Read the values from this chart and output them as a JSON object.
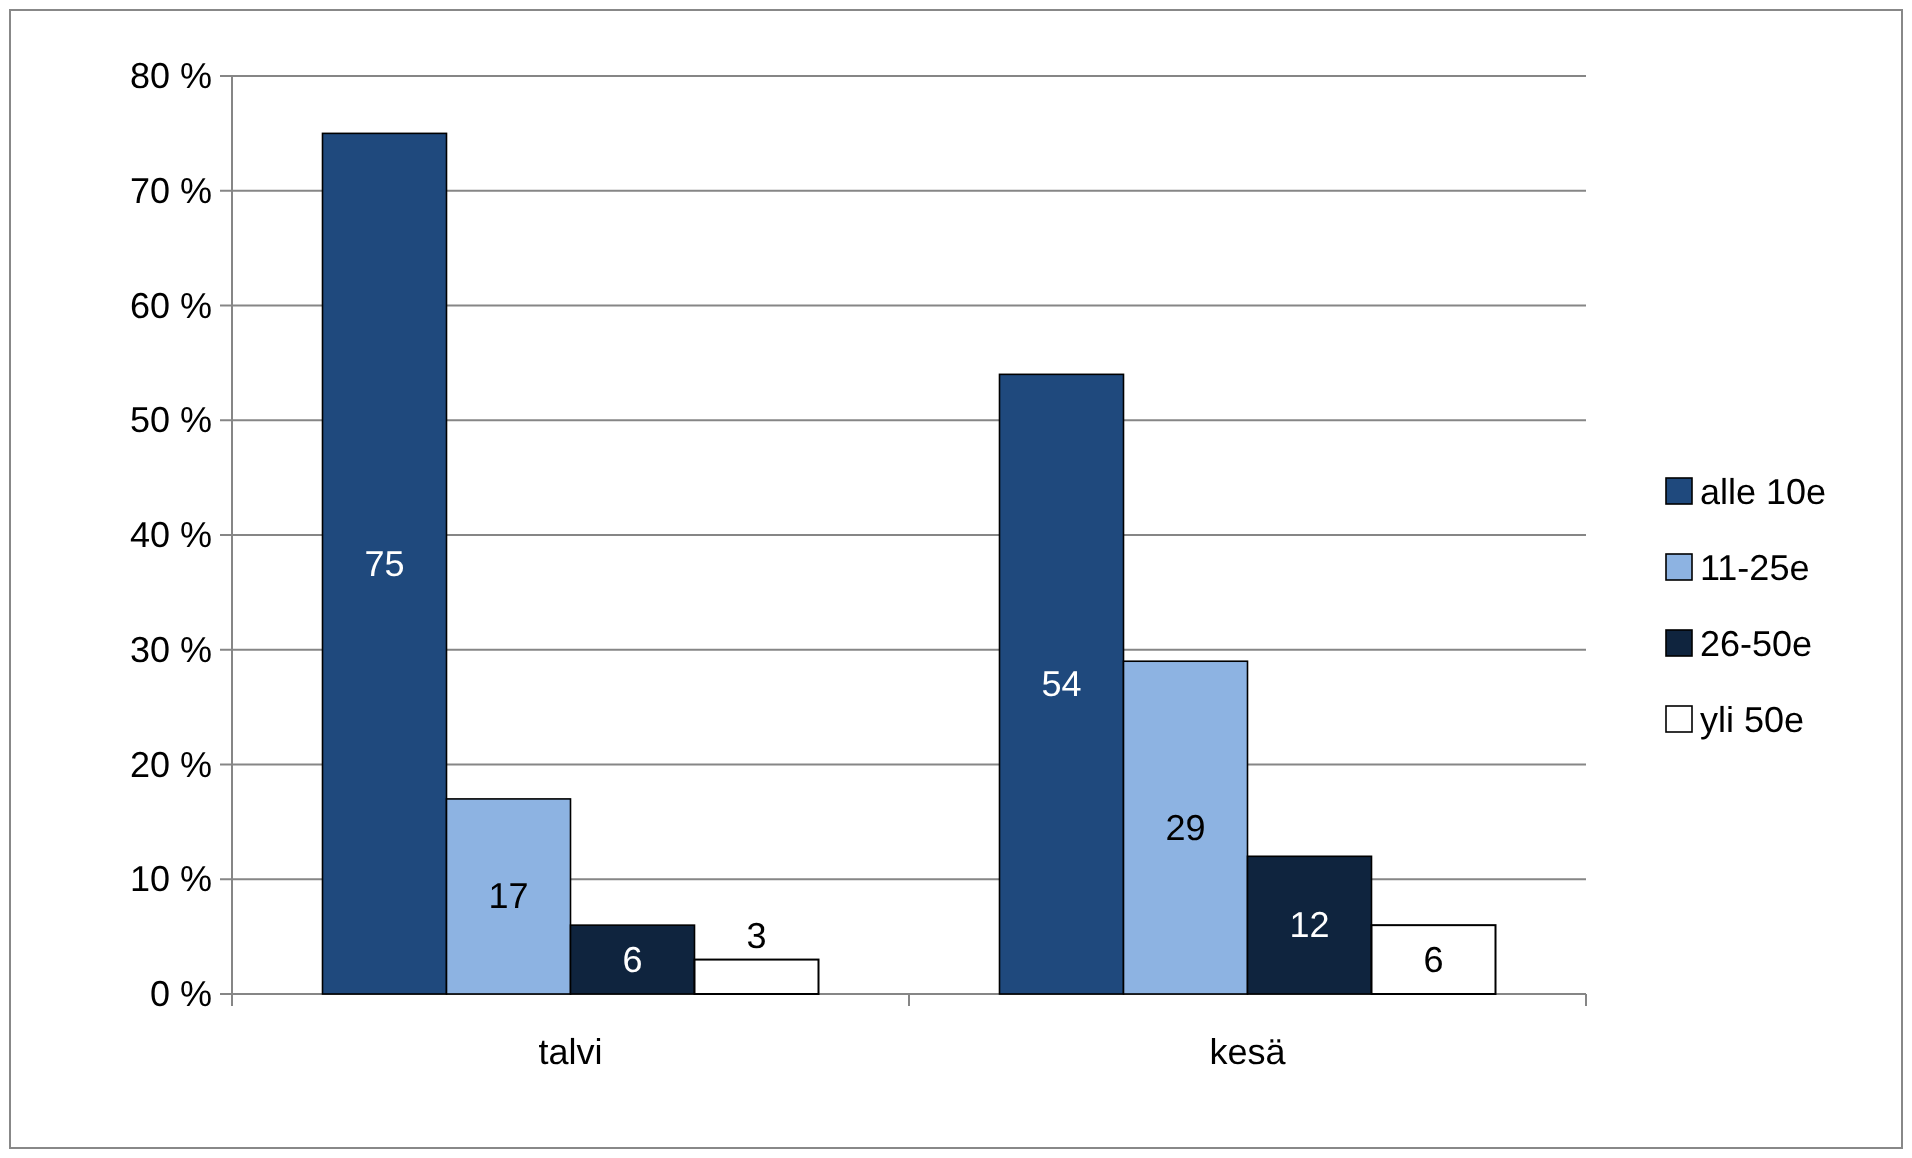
{
  "chart_data": {
    "type": "bar",
    "categories": [
      "talvi",
      "kesä"
    ],
    "series": [
      {
        "name": "alle 10e",
        "color": "#1f497d",
        "values": [
          75,
          54
        ]
      },
      {
        "name": "11-25e",
        "color": "#8db3e2",
        "values": [
          17,
          29
        ]
      },
      {
        "name": "26-50e",
        "color": "#0f243e",
        "values": [
          6,
          12
        ]
      },
      {
        "name": "yli 50e",
        "color": "#ffffff",
        "values": [
          3,
          6
        ]
      }
    ],
    "ylim": [
      0,
      80
    ],
    "yticks": [
      {
        "value": 0,
        "label": "0 %"
      },
      {
        "value": 10,
        "label": "10 %"
      },
      {
        "value": 20,
        "label": "20 %"
      },
      {
        "value": 30,
        "label": "30 %"
      },
      {
        "value": 40,
        "label": "40 %"
      },
      {
        "value": 50,
        "label": "50 %"
      },
      {
        "value": 60,
        "label": "60 %"
      },
      {
        "value": 70,
        "label": "70 %"
      },
      {
        "value": 80,
        "label": "80 %"
      }
    ],
    "grid": "y",
    "legend": "right",
    "data_labels": true
  }
}
